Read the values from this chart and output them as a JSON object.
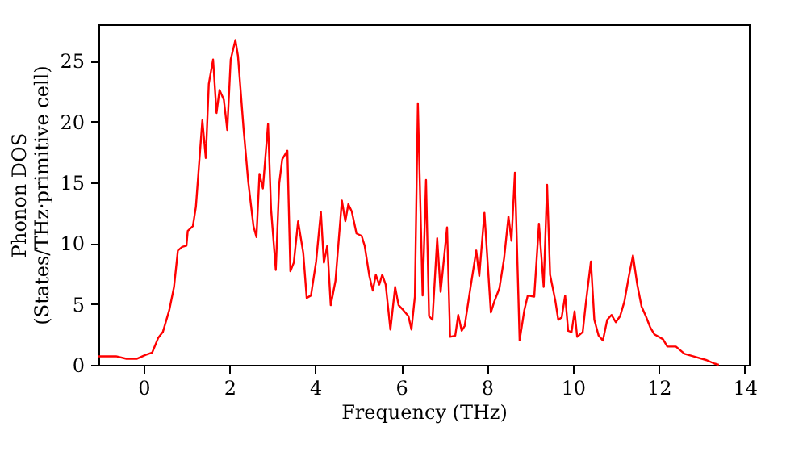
{
  "chart_data": {
    "type": "line",
    "xlabel": "Frequency (THz)",
    "ylabel": "Phonon DOS\n(States/THz·primitive cell)",
    "xlim": [
      -1.05,
      14.1
    ],
    "ylim": [
      0,
      28
    ],
    "xticks": [
      0,
      2,
      4,
      6,
      8,
      10,
      12,
      14
    ],
    "yticks": [
      0,
      5,
      10,
      15,
      20,
      25
    ],
    "grid": false,
    "line_style": "solid",
    "marker": "none",
    "series": [
      {
        "color": "#ff0000",
        "x": [
          -1.05,
          -0.64,
          -0.4,
          -0.15,
          0.04,
          0.2,
          0.34,
          0.45,
          0.6,
          0.71,
          0.8,
          0.9,
          1.0,
          1.03,
          1.15,
          1.22,
          1.3,
          1.37,
          1.45,
          1.52,
          1.62,
          1.7,
          1.77,
          1.87,
          1.95,
          2.03,
          2.14,
          2.2,
          2.33,
          2.44,
          2.56,
          2.63,
          2.7,
          2.78,
          2.9,
          2.97,
          3.08,
          3.16,
          3.23,
          3.35,
          3.42,
          3.5,
          3.6,
          3.72,
          3.8,
          3.9,
          4.02,
          4.13,
          4.2,
          4.28,
          4.36,
          4.47,
          4.62,
          4.7,
          4.77,
          4.85,
          4.96,
          5.08,
          5.15,
          5.26,
          5.34,
          5.41,
          5.49,
          5.56,
          5.64,
          5.75,
          5.86,
          5.94,
          6.05,
          6.17,
          6.24,
          6.32,
          6.39,
          6.5,
          6.58,
          6.65,
          6.73,
          6.84,
          6.92,
          7.07,
          7.14,
          7.26,
          7.33,
          7.41,
          7.48,
          7.6,
          7.75,
          7.82,
          7.94,
          8.09,
          8.17,
          8.29,
          8.4,
          8.5,
          8.57,
          8.65,
          8.76,
          8.87,
          8.95,
          9.1,
          9.21,
          9.32,
          9.4,
          9.47,
          9.59,
          9.66,
          9.74,
          9.82,
          9.89,
          9.97,
          10.04,
          10.1,
          10.23,
          10.3,
          10.42,
          10.5,
          10.6,
          10.7,
          10.8,
          10.9,
          11.0,
          11.1,
          11.2,
          11.3,
          11.4,
          11.5,
          11.6,
          11.7,
          11.8,
          11.9,
          12.1,
          12.2,
          12.4,
          12.6,
          12.8,
          13.1,
          13.3,
          13.4
        ],
        "values": [
          0.7,
          0.7,
          0.5,
          0.5,
          0.8,
          1.0,
          2.2,
          2.7,
          4.5,
          6.4,
          9.4,
          9.7,
          9.8,
          11.0,
          11.4,
          13,
          16.8,
          20.1,
          17,
          23.1,
          25.1,
          20.7,
          22.6,
          21.8,
          19.3,
          25.1,
          26.7,
          25.4,
          19.4,
          15,
          11.4,
          10.5,
          15.7,
          14.5,
          19.8,
          12.8,
          7.8,
          14.9,
          16.9,
          17.6,
          7.7,
          8.4,
          11.8,
          9.2,
          5.5,
          5.7,
          8.5,
          12.6,
          8.4,
          9.8,
          4.9,
          6.9,
          13.5,
          11.8,
          13.2,
          12.6,
          10.8,
          10.6,
          9.8,
          7.3,
          6.1,
          7.4,
          6.6,
          7.4,
          6.6,
          2.9,
          6.4,
          4.9,
          4.5,
          4.0,
          2.9,
          5.6,
          21.5,
          5.7,
          15.2,
          4,
          3.7,
          10.4,
          6,
          11.3,
          2.3,
          2.4,
          4.1,
          2.8,
          3.2,
          6,
          9.4,
          7.3,
          12.5,
          4.3,
          5.2,
          6.3,
          8.8,
          12.2,
          10.2,
          15.8,
          2.0,
          4.5,
          5.7,
          5.6,
          11.6,
          6.4,
          14.8,
          7.4,
          5.3,
          3.7,
          3.9,
          5.7,
          2.8,
          2.7,
          4.4,
          2.3,
          2.7,
          5.0,
          8.5,
          3.7,
          2.4,
          2.0,
          3.7,
          4.1,
          3.5,
          4.0,
          5.2,
          7.2,
          9.0,
          6.6,
          4.8,
          4.0,
          3.1,
          2.5,
          2.1,
          1.5,
          1.5,
          0.9,
          0.7,
          0.4,
          0.1,
          0
        ]
      }
    ]
  }
}
